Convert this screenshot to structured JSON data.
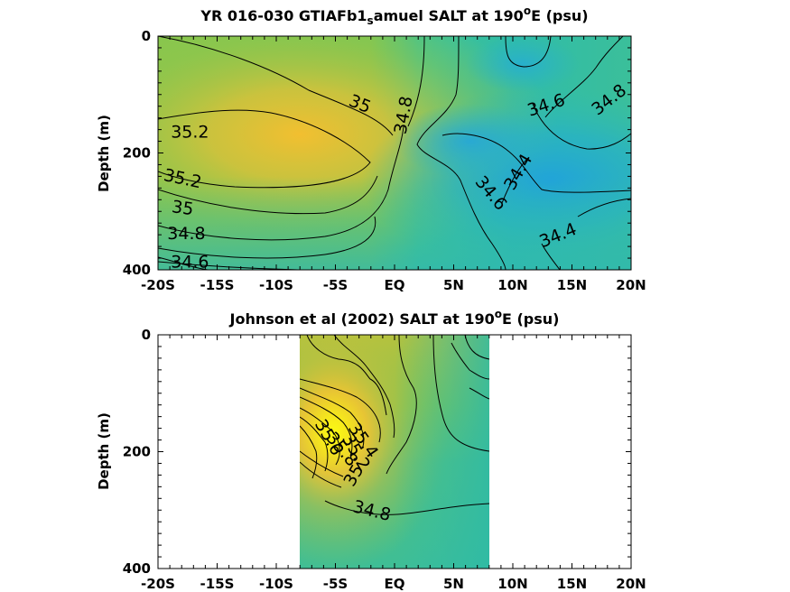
{
  "chart_data": [
    {
      "type": "contour",
      "title_main": "YR 016-030 GTIAFb1",
      "title_sub": "s",
      "title_tail": "amuel SALT at 190",
      "title_sup": "o",
      "title_end": "E (psu)",
      "ylabel": "Depth (m)",
      "xlim": [
        -20,
        20
      ],
      "ylim": [
        0,
        400
      ],
      "y_reversed": true,
      "xticks": [
        -20,
        -15,
        -10,
        -5,
        0,
        5,
        10,
        15,
        20
      ],
      "xtick_labels": [
        "-20S",
        "-15S",
        "-10S",
        "-5S",
        "EQ",
        "5N",
        "10N",
        "15N",
        "20N"
      ],
      "yticks": [
        0,
        200,
        400
      ],
      "ytick_labels": [
        "0",
        "200",
        "400"
      ],
      "contour_labels": [
        {
          "text": "35",
          "x": -2.9,
          "y": 115,
          "angle": 22
        },
        {
          "text": "35.2",
          "x": -17.3,
          "y": 163,
          "angle": 0
        },
        {
          "text": "34.8",
          "x": 0.7,
          "y": 135,
          "angle": -80
        },
        {
          "text": "35.2",
          "x": -17.9,
          "y": 243,
          "angle": 12
        },
        {
          "text": "35",
          "x": -17.9,
          "y": 293,
          "angle": 8
        },
        {
          "text": "34.8",
          "x": -17.6,
          "y": 337,
          "angle": 0
        },
        {
          "text": "34.6",
          "x": -17.3,
          "y": 385,
          "angle": 0
        },
        {
          "text": "34.6",
          "x": 12.8,
          "y": 117,
          "angle": -18
        },
        {
          "text": "34.8",
          "x": 18.1,
          "y": 108,
          "angle": -38
        },
        {
          "text": "34.4",
          "x": 10.4,
          "y": 232,
          "angle": -60
        },
        {
          "text": "34.6",
          "x": 8.2,
          "y": 268,
          "angle": 50
        },
        {
          "text": "34.4",
          "x": 13.8,
          "y": 340,
          "angle": -22
        }
      ]
    },
    {
      "type": "contour",
      "title_main": "Johnson et al (2002) SALT at 190",
      "title_sup": "o",
      "title_end": "E (psu)",
      "ylabel": "Depth (m)",
      "xlim": [
        -20,
        20
      ],
      "ylim": [
        0,
        400
      ],
      "y_reversed": true,
      "data_extent_x": [
        -8,
        8
      ],
      "xticks": [
        -20,
        -15,
        -10,
        -5,
        0,
        5,
        10,
        15,
        20
      ],
      "xtick_labels": [
        "-20S",
        "-15S",
        "-10S",
        "-5S",
        "EQ",
        "5N",
        "10N",
        "15N",
        "20N"
      ],
      "yticks": [
        0,
        200,
        400
      ],
      "ytick_labels": [
        "0",
        "200",
        "400"
      ],
      "contour_labels": [
        {
          "text": "34.8",
          "x": -1.9,
          "y": 300,
          "angle": 14
        },
        {
          "text": "35",
          "x": -3.5,
          "y": 240,
          "angle": -60
        },
        {
          "text": "35.2",
          "x": -3.2,
          "y": 200,
          "angle": 60
        },
        {
          "text": "35.4",
          "x": -2.6,
          "y": 180,
          "angle": 55
        },
        {
          "text": "35.6",
          "x": -5.5,
          "y": 175,
          "angle": 60
        },
        {
          "text": "35.8",
          "x": -4.4,
          "y": 195,
          "angle": 50
        }
      ]
    }
  ]
}
